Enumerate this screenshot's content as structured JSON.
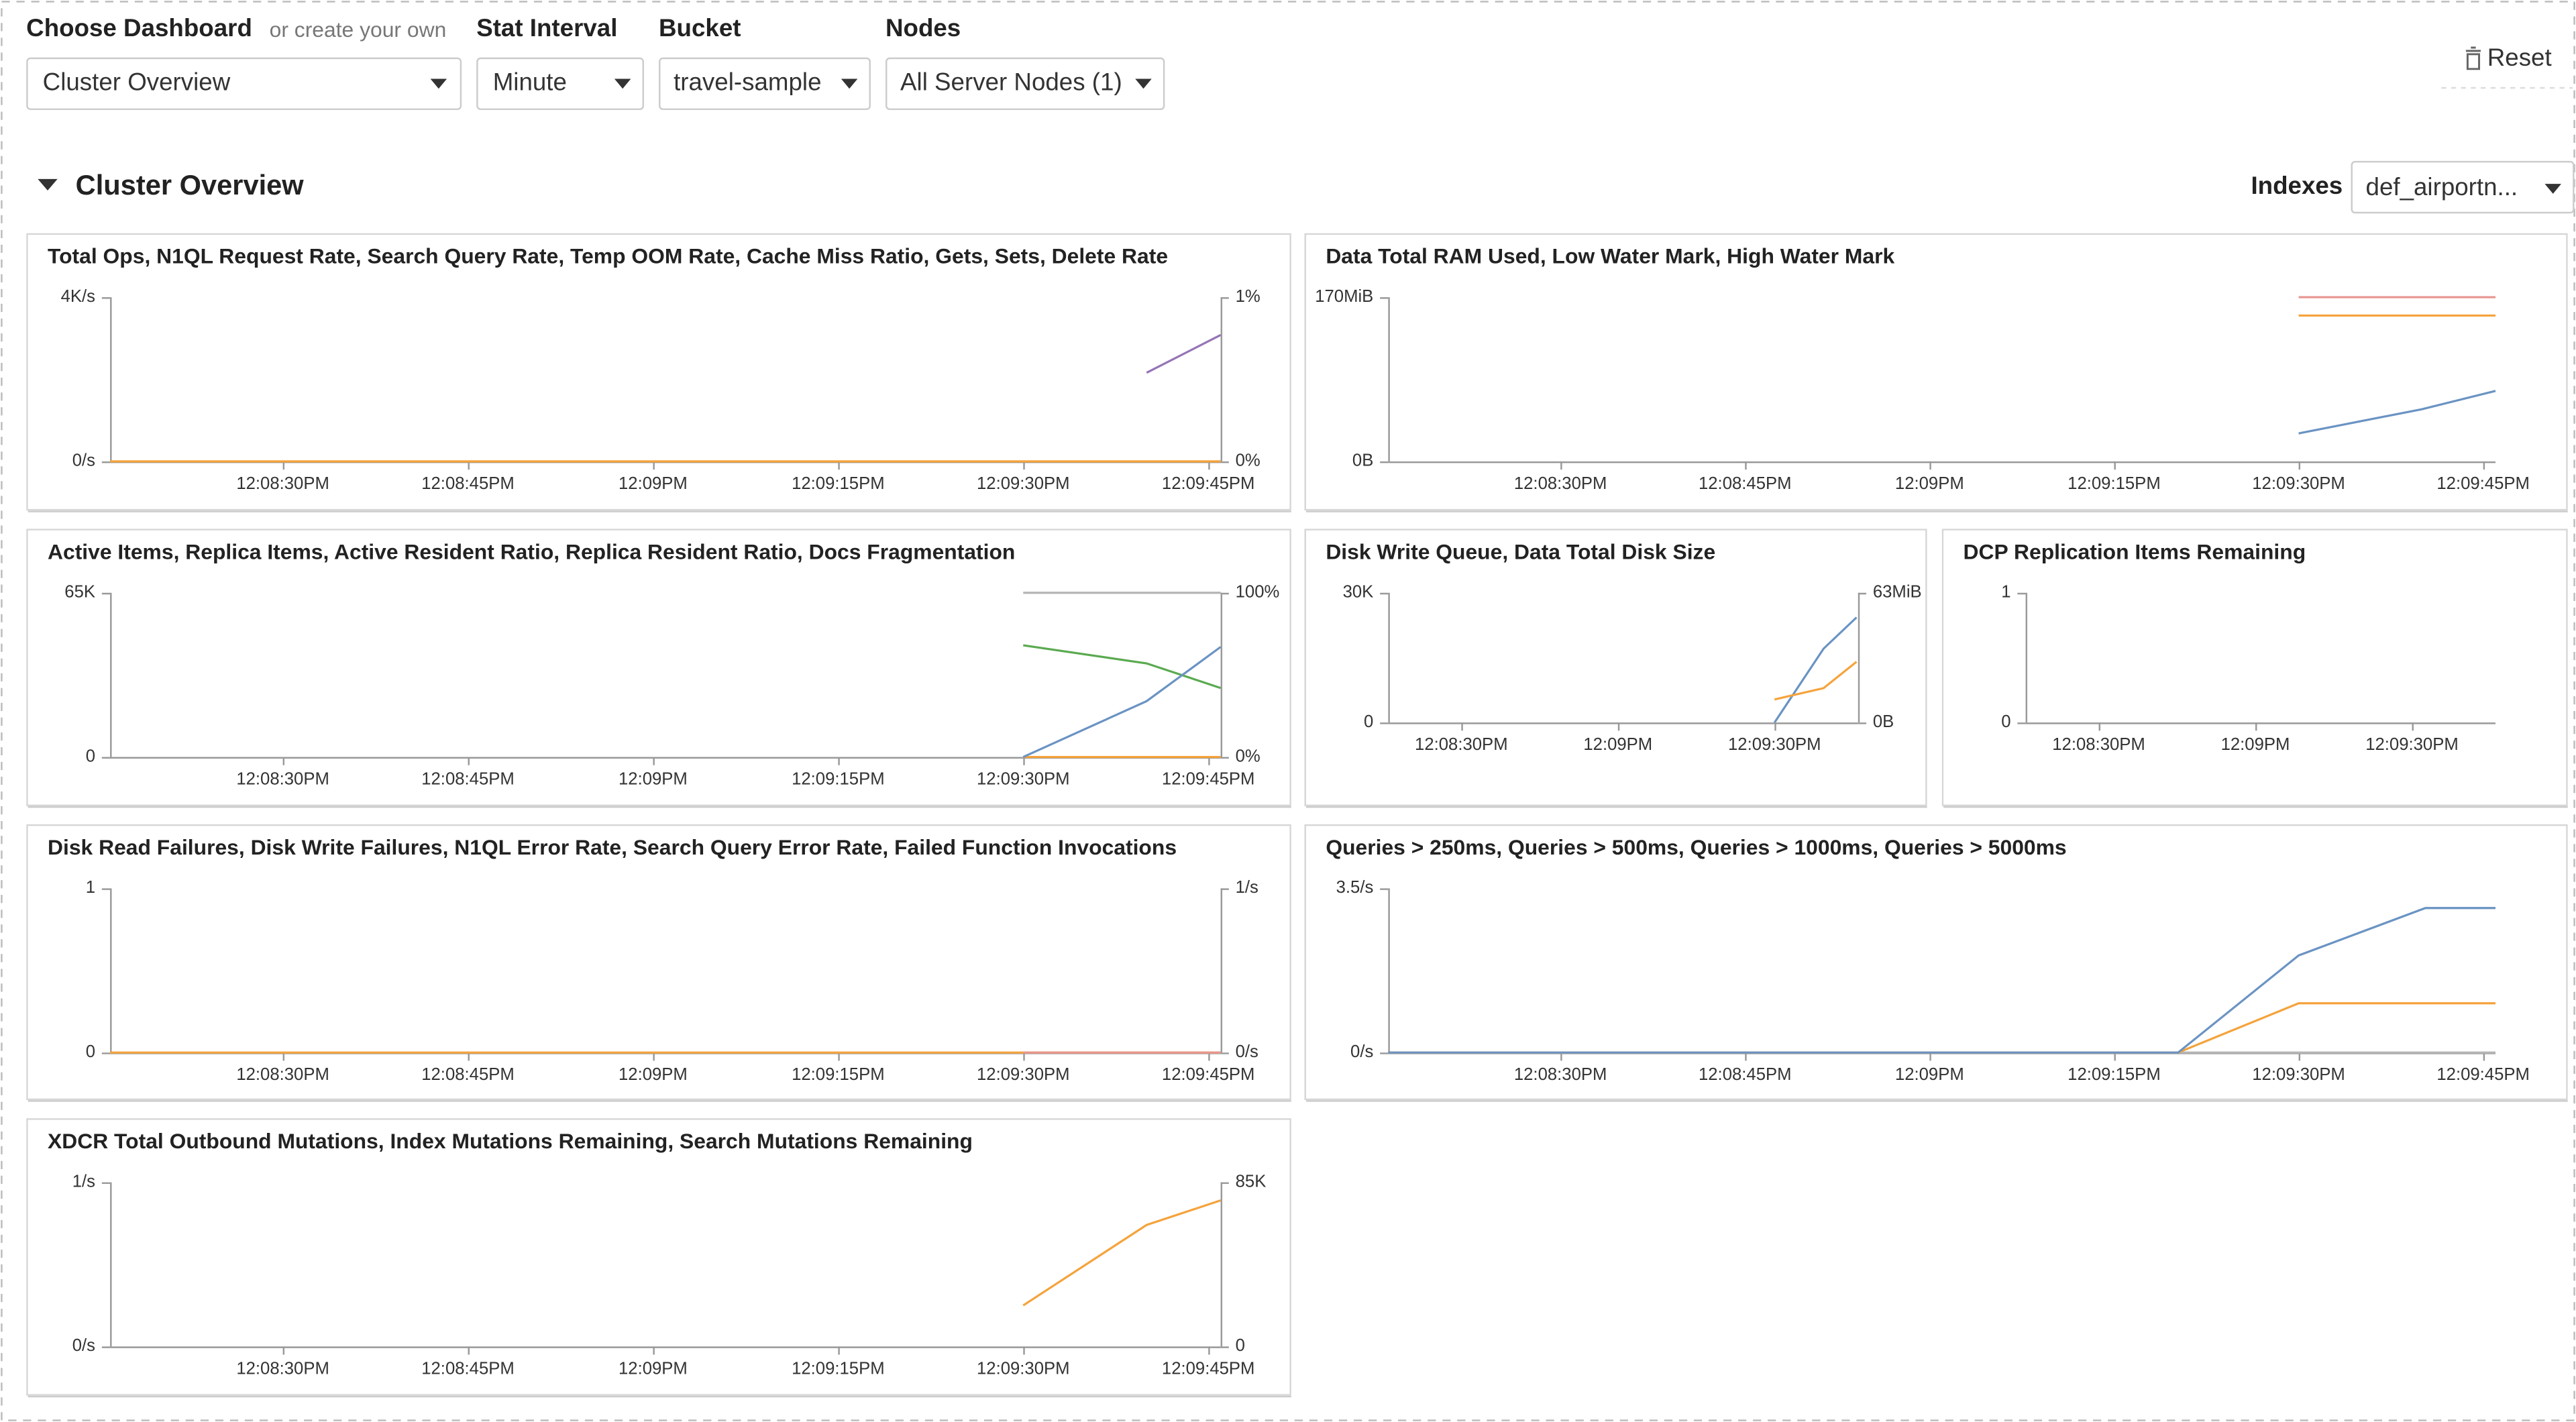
{
  "header": {
    "choose_dashboard_label": "Choose Dashboard",
    "create_hint": "or create your own",
    "dashboard": "Cluster Overview",
    "stat_interval_label": "Stat Interval",
    "stat_interval": "Minute",
    "bucket_label": "Bucket",
    "bucket": "travel-sample",
    "nodes_label": "Nodes",
    "nodes": "All Server Nodes (1)",
    "reset": "Reset"
  },
  "section": {
    "title": "Cluster Overview",
    "indexes_label": "Indexes",
    "indexes": "def_airportn..."
  },
  "chart_data": [
    {
      "type": "line",
      "title": "Total Ops, N1QL Request Rate, Search Query Rate, Temp OOM Rate, Cache Miss Ratio, Gets, Sets, Delete Rate",
      "xlim": [
        496,
        586
      ],
      "xticks": [
        {
          "value": 510,
          "label": "12:08:30PM"
        },
        {
          "value": 525,
          "label": "12:08:45PM"
        },
        {
          "value": 540,
          "label": "12:09PM"
        },
        {
          "value": 555,
          "label": "12:09:15PM"
        },
        {
          "value": 570,
          "label": "12:09:30PM"
        },
        {
          "value": 585,
          "label": "12:09:45PM"
        }
      ],
      "ylim": [
        0,
        4000
      ],
      "yticks": [
        {
          "value": 0,
          "label": "0/s"
        },
        {
          "value": 4000,
          "label": "4K/s"
        }
      ],
      "y2lim": [
        0,
        1
      ],
      "y2ticks": [
        {
          "value": 0,
          "label": "0%"
        },
        {
          "value": 1,
          "label": "1%"
        }
      ],
      "series": [
        {
          "color": "#9474b6",
          "axis": "y2",
          "x": [
            580,
            586
          ],
          "values": [
            0.54,
            0.77
          ]
        },
        {
          "color": "#f5a33c",
          "x": [
            496,
            586
          ],
          "values": [
            0,
            0
          ]
        }
      ]
    },
    {
      "type": "line",
      "title": "Data Total RAM Used, Low Water Mark, High Water Mark",
      "xlim": [
        496,
        586
      ],
      "xticks": [
        {
          "value": 510,
          "label": "12:08:30PM"
        },
        {
          "value": 525,
          "label": "12:08:45PM"
        },
        {
          "value": 540,
          "label": "12:09PM"
        },
        {
          "value": 555,
          "label": "12:09:15PM"
        },
        {
          "value": 570,
          "label": "12:09:30PM"
        },
        {
          "value": 585,
          "label": "12:09:45PM"
        }
      ],
      "ylim": [
        0,
        170
      ],
      "yticks": [
        {
          "value": 0,
          "label": "0B"
        },
        {
          "value": 170,
          "label": "170MiB"
        }
      ],
      "series": [
        {
          "color": "#e8958f",
          "x": [
            570,
            586
          ],
          "values": [
            170,
            170
          ]
        },
        {
          "color": "#f5a33c",
          "x": [
            570,
            586
          ],
          "values": [
            151,
            151
          ]
        },
        {
          "color": "#6a93c3",
          "x": [
            570,
            580,
            586
          ],
          "values": [
            29,
            54,
            73
          ]
        }
      ]
    },
    {
      "type": "line",
      "title": "Active Items, Replica Items, Active Resident Ratio, Replica Resident Ratio, Docs Fragmentation",
      "xlim": [
        496,
        586
      ],
      "xticks": [
        {
          "value": 510,
          "label": "12:08:30PM"
        },
        {
          "value": 525,
          "label": "12:08:45PM"
        },
        {
          "value": 540,
          "label": "12:09PM"
        },
        {
          "value": 555,
          "label": "12:09:15PM"
        },
        {
          "value": 570,
          "label": "12:09:30PM"
        },
        {
          "value": 585,
          "label": "12:09:45PM"
        }
      ],
      "ylim": [
        0,
        65000
      ],
      "yticks": [
        0,
        {
          "value": 65000,
          "label": "65K"
        }
      ],
      "y2lim": [
        0,
        100
      ],
      "y2ticks": [
        {
          "value": 0,
          "label": "0%"
        },
        {
          "value": 100,
          "label": "100%"
        }
      ],
      "series": [
        {
          "color": "#b5b5b5",
          "axis": "y2",
          "x": [
            570,
            586
          ],
          "values": [
            100,
            100
          ]
        },
        {
          "color": "#5aaa50",
          "axis": "y2",
          "x": [
            570,
            580,
            586
          ],
          "values": [
            68,
            57,
            42
          ]
        },
        {
          "color": "#f5a33c",
          "axis": "y2",
          "x": [
            570,
            586
          ],
          "values": [
            0,
            0
          ]
        },
        {
          "color": "#6a93c3",
          "x": [
            570,
            580,
            586
          ],
          "values": [
            0,
            22100,
            43550
          ]
        }
      ]
    },
    {
      "type": "line",
      "title": "Disk Write Queue, Data Total Disk Size",
      "xlim": [
        496,
        586
      ],
      "xticks": [
        {
          "value": 510,
          "label": "12:08:30PM"
        },
        {
          "value": 540,
          "label": "12:09PM"
        },
        {
          "value": 570,
          "label": "12:09:30PM"
        }
      ],
      "ylim": [
        0,
        30000
      ],
      "yticks": [
        0,
        {
          "value": 30000,
          "label": "30K"
        }
      ],
      "y2lim": [
        0,
        63
      ],
      "y2ticks": [
        {
          "value": 0,
          "label": "0B"
        },
        {
          "value": 63,
          "label": "63MiB"
        }
      ],
      "series": [
        {
          "color": "#6a93c3",
          "x": [
            570,
            579.4,
            585.7
          ],
          "values": [
            0,
            17090,
            24300
          ]
        },
        {
          "color": "#f5a33c",
          "axis": "y2",
          "x": [
            570,
            579.4,
            585.7
          ],
          "values": [
            11.2,
            16.7,
            29.5
          ]
        }
      ]
    },
    {
      "type": "line",
      "title": "DCP Replication Items Remaining",
      "xlim": [
        496,
        586
      ],
      "xticks": [
        {
          "value": 510,
          "label": "12:08:30PM"
        },
        {
          "value": 540,
          "label": "12:09PM"
        },
        {
          "value": 570,
          "label": "12:09:30PM"
        }
      ],
      "ylim": [
        0,
        1
      ],
      "yticks": [
        0,
        1
      ],
      "series": []
    },
    {
      "type": "line",
      "title": "Disk Read Failures, Disk Write Failures, N1QL Error Rate, Search Query Error Rate, Failed Function Invocations",
      "xlim": [
        496,
        586
      ],
      "xticks": [
        {
          "value": 510,
          "label": "12:08:30PM"
        },
        {
          "value": 525,
          "label": "12:08:45PM"
        },
        {
          "value": 540,
          "label": "12:09PM"
        },
        {
          "value": 555,
          "label": "12:09:15PM"
        },
        {
          "value": 570,
          "label": "12:09:30PM"
        },
        {
          "value": 585,
          "label": "12:09:45PM"
        }
      ],
      "ylim": [
        0,
        1
      ],
      "yticks": [
        0,
        1
      ],
      "y2lim": [
        0,
        1
      ],
      "y2ticks": [
        {
          "value": 0,
          "label": "0/s"
        },
        {
          "value": 1,
          "label": "1/s"
        }
      ],
      "series": [
        {
          "color": "#f5a33c",
          "x": [
            496,
            586
          ],
          "values": [
            0,
            0
          ]
        },
        {
          "color": "#e8958f",
          "x": [
            570,
            586
          ],
          "values": [
            0,
            0
          ]
        }
      ]
    },
    {
      "type": "line",
      "title": "Queries > 250ms, Queries > 500ms, Queries > 1000ms, Queries > 5000ms",
      "xlim": [
        496,
        586
      ],
      "xticks": [
        {
          "value": 510,
          "label": "12:08:30PM"
        },
        {
          "value": 525,
          "label": "12:08:45PM"
        },
        {
          "value": 540,
          "label": "12:09PM"
        },
        {
          "value": 555,
          "label": "12:09:15PM"
        },
        {
          "value": 570,
          "label": "12:09:30PM"
        },
        {
          "value": 585,
          "label": "12:09:45PM"
        }
      ],
      "ylim": [
        0,
        3.5
      ],
      "yticks": [
        {
          "value": 0,
          "label": "0/s"
        },
        {
          "value": 3.5,
          "label": "3.5/s"
        }
      ],
      "series": [
        {
          "color": "#b5b5b5",
          "x": [
            496,
            586
          ],
          "values": [
            0,
            0
          ]
        },
        {
          "color": "#f5a33c",
          "x": [
            496,
            560.2,
            570,
            586
          ],
          "values": [
            0,
            0,
            1.05,
            1.05
          ]
        },
        {
          "color": "#6a93c3",
          "x": [
            496,
            560.2,
            570,
            580.3,
            586
          ],
          "values": [
            0,
            0,
            2.07,
            3.08,
            3.08
          ]
        }
      ]
    },
    {
      "type": "line",
      "title": "XDCR Total Outbound Mutations, Index Mutations Remaining, Search Mutations Remaining",
      "xlim": [
        496,
        586
      ],
      "xticks": [
        {
          "value": 510,
          "label": "12:08:30PM"
        },
        {
          "value": 525,
          "label": "12:08:45PM"
        },
        {
          "value": 540,
          "label": "12:09PM"
        },
        {
          "value": 555,
          "label": "12:09:15PM"
        },
        {
          "value": 570,
          "label": "12:09:30PM"
        },
        {
          "value": 585,
          "label": "12:09:45PM"
        }
      ],
      "ylim": [
        0,
        1
      ],
      "yticks": [
        {
          "value": 0,
          "label": "0/s"
        },
        {
          "value": 1,
          "label": "1/s"
        }
      ],
      "y2lim": [
        0,
        85000
      ],
      "y2ticks": [
        0,
        {
          "value": 85000,
          "label": "85K"
        }
      ],
      "series": [
        {
          "color": "#f5a33c",
          "axis": "y2",
          "x": [
            570,
            580,
            586
          ],
          "values": [
            21250,
            62900,
            75600
          ]
        }
      ]
    }
  ]
}
